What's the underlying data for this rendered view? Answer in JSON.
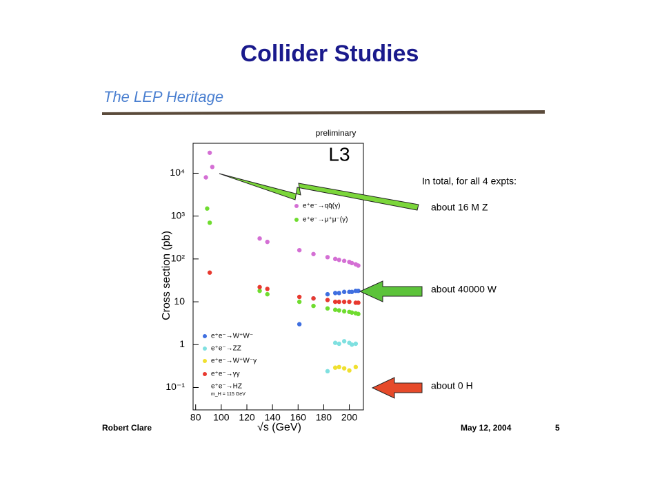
{
  "slide": {
    "title": "Collider Studies",
    "subtitle": "The LEP Heritage",
    "annotation_header": "In total, for all 4 expts:",
    "annotations": [
      "about 16 M Z",
      "about 40000 W",
      "about 0 H"
    ],
    "footer_left": "Robert Clare",
    "footer_date": "May 12, 2004",
    "footer_page": "5"
  },
  "chart_data": {
    "type": "scatter",
    "note": "preliminary",
    "experiment": "L3",
    "x_label": "√s (GeV)",
    "y_label": "Cross section (pb)",
    "log_y": true,
    "xlim": [
      78,
      211
    ],
    "xticks": [
      80,
      100,
      120,
      140,
      160,
      180,
      200
    ],
    "ylim": [
      0.03,
      50000
    ],
    "yticks": [
      {
        "value": 0.1,
        "label": "10⁻¹"
      },
      1,
      10,
      {
        "value": 100,
        "label": "10²"
      },
      {
        "value": 1000,
        "label": "10³"
      },
      {
        "value": 10000,
        "label": "10⁴"
      }
    ],
    "series": [
      {
        "name": "e⁺e⁻→qq̄(γ)",
        "color": "#d46fd4",
        "x": [
          88,
          91,
          93,
          130,
          136,
          161,
          172,
          183,
          189,
          192,
          196,
          200,
          202,
          205,
          207
        ],
        "values": [
          8000,
          30000,
          14000,
          300,
          250,
          160,
          130,
          110,
          100,
          95,
          90,
          85,
          80,
          75,
          70
        ]
      },
      {
        "name": "e⁺e⁻→μ⁺μ⁻(γ)",
        "color": "#6fdc2f",
        "x": [
          89,
          91,
          130,
          136,
          161,
          172,
          183,
          189,
          192,
          196,
          200,
          202,
          205,
          207
        ],
        "values": [
          1500,
          700,
          18,
          15,
          10,
          8,
          7,
          6.5,
          6.3,
          6,
          5.8,
          5.6,
          5.4,
          5.2
        ]
      },
      {
        "name": "e⁺e⁻→W⁺W⁻",
        "color": "#3f6fe0",
        "x": [
          161,
          172,
          183,
          189,
          192,
          196,
          200,
          202,
          205,
          207
        ],
        "values": [
          3,
          12,
          15,
          16,
          16,
          17,
          17,
          17,
          18,
          18
        ]
      },
      {
        "name": "e⁺e⁻→ZZ",
        "color": "#7fe0e0",
        "x": [
          183,
          189,
          192,
          196,
          200,
          202,
          205
        ],
        "values": [
          0.24,
          1.1,
          1.05,
          1.2,
          1.1,
          1.0,
          1.05
        ]
      },
      {
        "name": "e⁺e⁻→W⁺W⁻γ",
        "color": "#f0e030",
        "x": [
          189,
          192,
          196,
          200,
          205
        ],
        "values": [
          0.29,
          0.3,
          0.28,
          0.25,
          0.3
        ]
      },
      {
        "name": "e⁺e⁻→γγ",
        "color": "#e8392f",
        "x": [
          91,
          130,
          136,
          161,
          172,
          183,
          189,
          192,
          196,
          200,
          205,
          207
        ],
        "values": [
          48,
          22,
          20,
          13,
          12,
          11,
          10,
          10,
          10,
          10,
          9.5,
          9.5
        ]
      }
    ],
    "extra_legend": [
      "e⁺e⁻→HZ",
      "m_H = 115 GeV"
    ]
  }
}
